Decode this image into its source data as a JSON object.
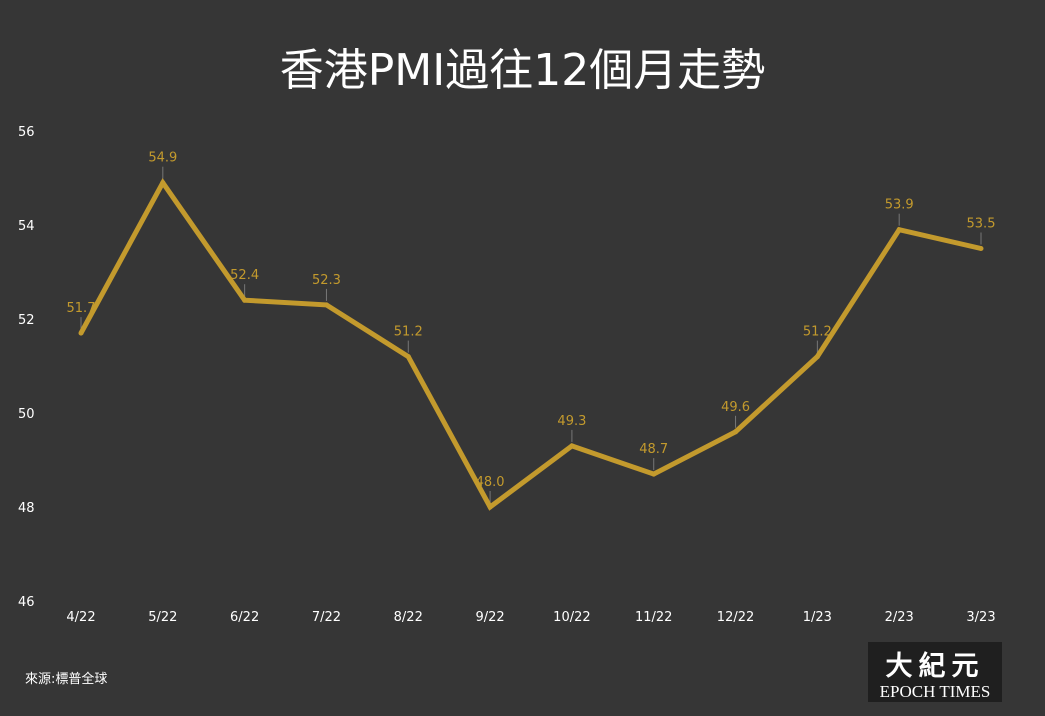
{
  "colors": {
    "background": "#363636",
    "line": "#c39a2d",
    "data_label": "#c39a2d",
    "text": "#ffffff",
    "logo_bg": "#1f1f1f"
  },
  "source": "來源:標普全球",
  "logo": {
    "cn": "大紀元",
    "en": "EPOCH TIMES"
  },
  "chart_data": {
    "type": "line",
    "title": "香港PMI過往12個月走勢",
    "categories": [
      "4/22",
      "5/22",
      "6/22",
      "7/22",
      "8/22",
      "9/22",
      "10/22",
      "11/22",
      "12/22",
      "1/23",
      "2/23",
      "3/23"
    ],
    "values": [
      51.7,
      54.9,
      52.4,
      52.3,
      51.2,
      48.0,
      49.3,
      48.7,
      49.6,
      51.2,
      53.9,
      53.5
    ],
    "data_labels": [
      "51.7",
      "54.9",
      "52.4",
      "52.3",
      "51.2",
      "48.0",
      "49.3",
      "48.7",
      "49.6",
      "51.2",
      "53.9",
      "53.5"
    ],
    "ylim": [
      46,
      56
    ],
    "yticks": [
      46,
      48,
      50,
      52,
      54,
      56
    ],
    "xlabel": "",
    "ylabel": "",
    "grid": false,
    "legend": "none"
  }
}
